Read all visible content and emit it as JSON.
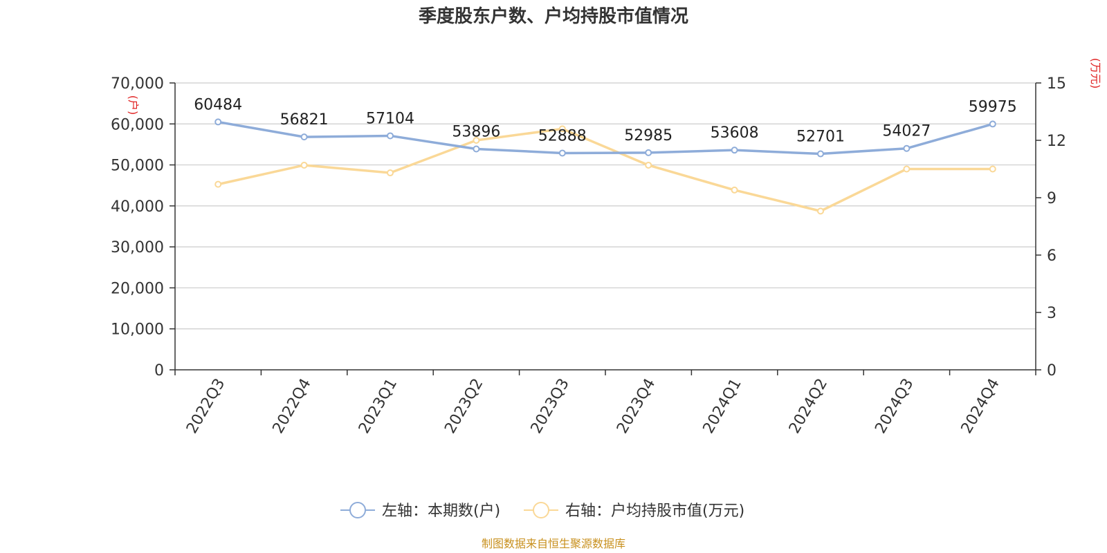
{
  "chart_data": {
    "type": "line",
    "title": "季度股东户数、户均持股市值情况",
    "categories": [
      "2022Q3",
      "2022Q4",
      "2023Q1",
      "2023Q2",
      "2023Q3",
      "2023Q4",
      "2024Q1",
      "2024Q2",
      "2024Q3",
      "2024Q4"
    ],
    "left_axis": {
      "unit": "(户)",
      "ylim": [
        0,
        70000
      ],
      "ticks": [
        "0",
        "10,000",
        "20,000",
        "30,000",
        "40,000",
        "50,000",
        "60,000",
        "70,000"
      ]
    },
    "right_axis": {
      "unit": "(万元)",
      "ylim": [
        0,
        15
      ],
      "ticks": [
        "0",
        "3",
        "6",
        "9",
        "12",
        "15"
      ]
    },
    "series": [
      {
        "name": "左轴：本期数(户)",
        "axis": "left",
        "color": "#8eacd9",
        "values": [
          60484,
          56821,
          57104,
          53896,
          52888,
          52985,
          53608,
          52701,
          54027,
          59975
        ],
        "labels": [
          "60484",
          "56821",
          "57104",
          "53896",
          "52888",
          "52985",
          "53608",
          "52701",
          "54027",
          "59975"
        ]
      },
      {
        "name": "右轴：户均持股市值(万元)",
        "axis": "right",
        "color": "#fad897",
        "values": [
          9.7,
          10.7,
          10.3,
          12.0,
          12.6,
          10.7,
          9.4,
          8.3,
          10.5,
          10.5
        ]
      }
    ],
    "grid": true,
    "legend": "bottom-center",
    "source": "制图数据来自恒生聚源数据库"
  }
}
